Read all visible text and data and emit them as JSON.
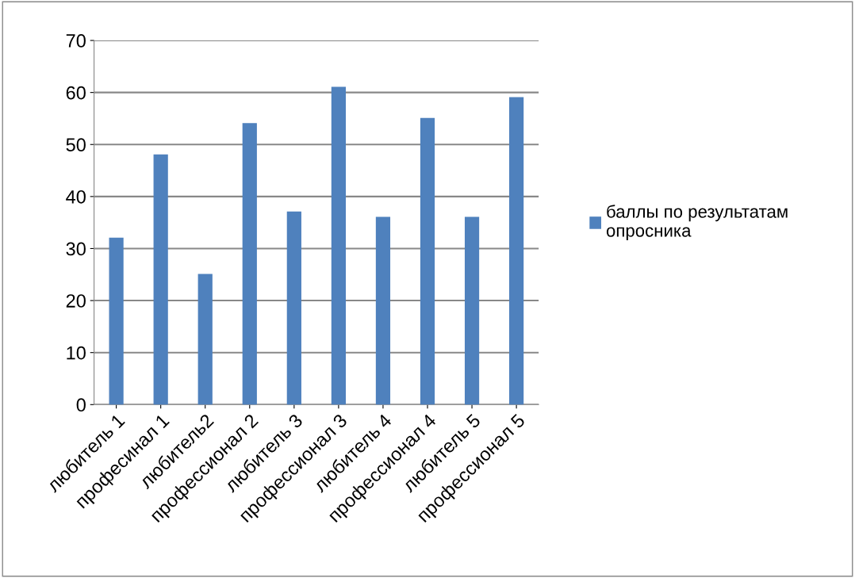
{
  "chart_data": {
    "type": "bar",
    "categories": [
      "любитель 1",
      "професинал 1",
      "любитель2",
      "профессионал 2",
      "любитель 3",
      "профессионал 3",
      "любитель 4",
      "профессионал 4",
      "любитель 5",
      "профессионал 5"
    ],
    "series": [
      {
        "name": "баллы по результатам опросника",
        "color": "#4f81bd",
        "values": [
          32,
          48,
          25,
          54,
          37,
          61,
          36,
          55,
          36,
          59
        ]
      }
    ],
    "ylim": [
      0,
      70
    ],
    "yticks": [
      0,
      10,
      20,
      30,
      40,
      50,
      60,
      70
    ],
    "grid": "y",
    "legend": "right"
  }
}
